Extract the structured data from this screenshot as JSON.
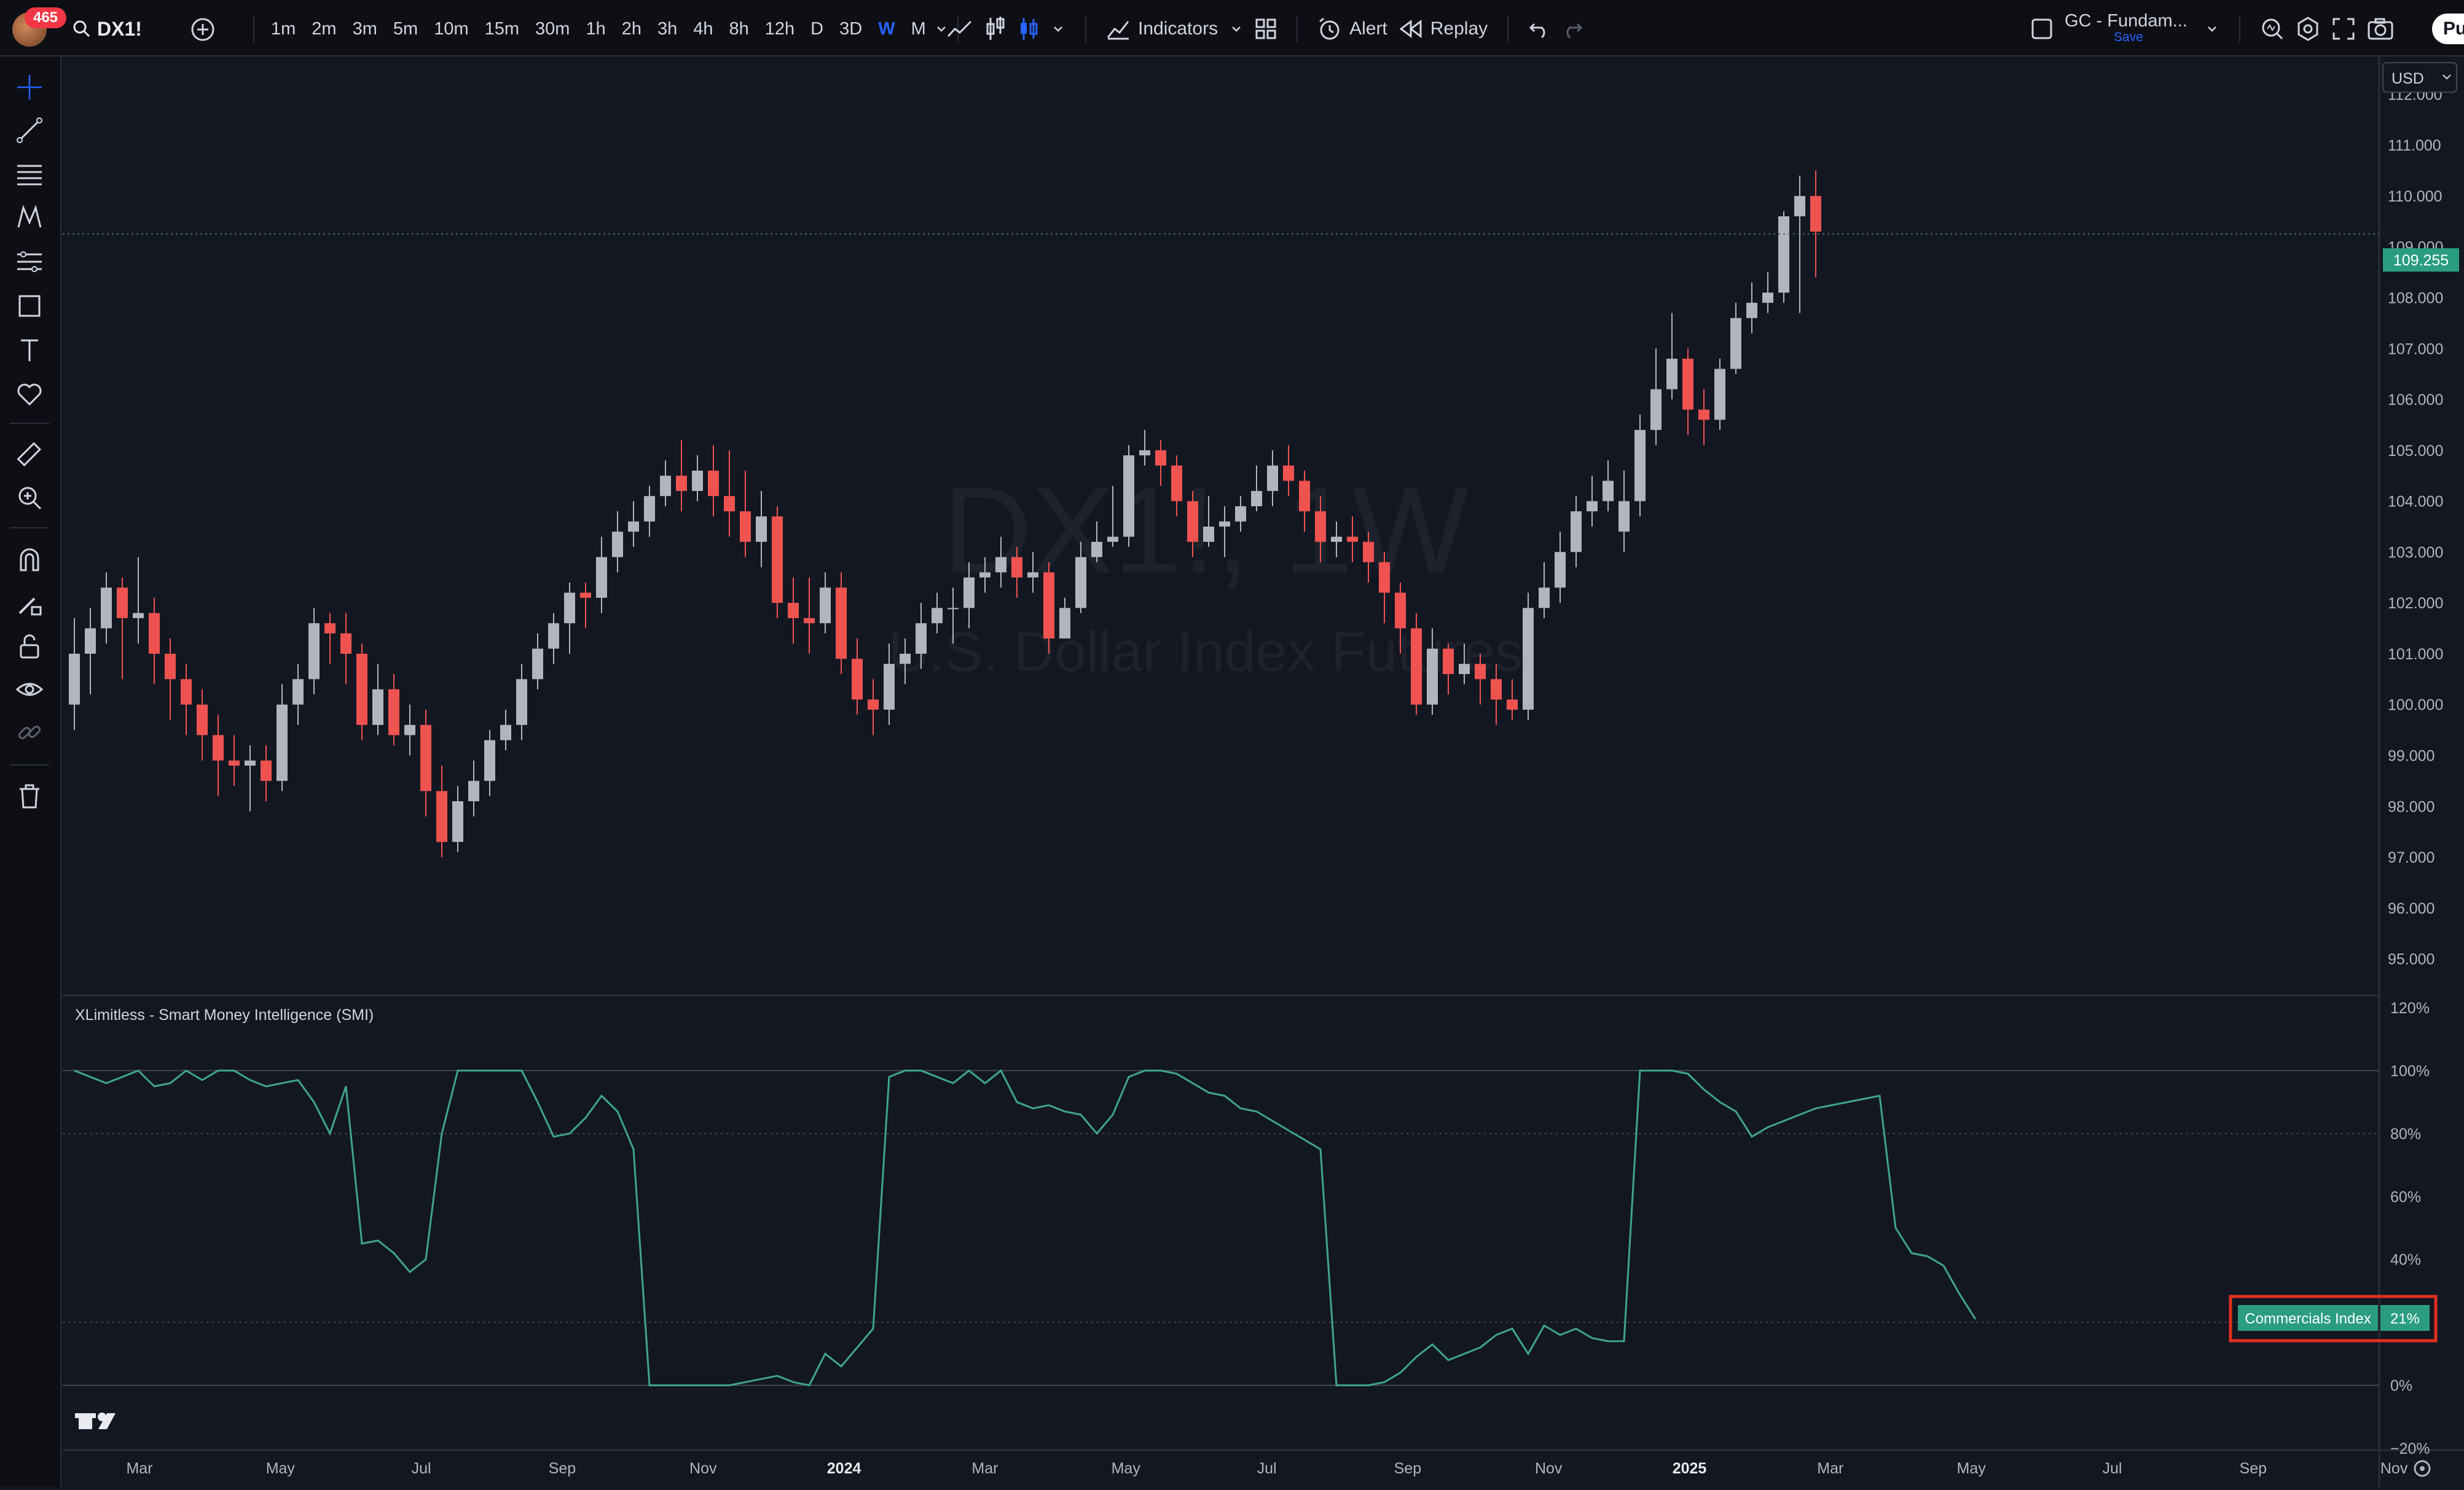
{
  "topbar": {
    "notifications": "465",
    "symbol": "DX1!",
    "intervals": [
      "1m",
      "2m",
      "3m",
      "5m",
      "10m",
      "15m",
      "30m",
      "1h",
      "2h",
      "3h",
      "4h",
      "8h",
      "12h",
      "D",
      "3D",
      "W",
      "M"
    ],
    "active_interval": "W",
    "indicators_label": "Indicators",
    "alert_label": "Alert",
    "replay_label": "Replay",
    "layout_name": "GC - Fundam...",
    "layout_save": "Save",
    "publish_label": "Pu"
  },
  "watermark": {
    "title": "DX1!, 1W",
    "subtitle": "U.S. Dollar Index Futures"
  },
  "price_axis": {
    "currency": "USD",
    "labels": [
      "112.000",
      "111.000",
      "110.000",
      "109.000",
      "108.000",
      "107.000",
      "106.000",
      "105.000",
      "104.000",
      "103.000",
      "102.000",
      "101.000",
      "100.000",
      "99.000",
      "98.000",
      "97.000",
      "96.000",
      "95.000"
    ],
    "last_price": "109.255"
  },
  "indicator": {
    "title": "XLimitless - Smart Money Intelligence (SMI)",
    "axis_labels": [
      "120%",
      "100%",
      "80%",
      "60%",
      "40%",
      "20%",
      "0%",
      "−20%"
    ],
    "badge_label": "Commercials Index",
    "badge_value": "21%"
  },
  "time_axis": {
    "labels": [
      "Mar",
      "May",
      "Jul",
      "Sep",
      "Nov",
      "2024",
      "Mar",
      "May",
      "Jul",
      "Sep",
      "Nov",
      "2025",
      "Mar",
      "May",
      "Jul",
      "Sep",
      "Nov"
    ],
    "bold": [
      "2024",
      "2025"
    ]
  },
  "colors": {
    "up": "#b2b5be",
    "down": "#ef5350",
    "line": "#3fa58e",
    "accent": "#2962ff",
    "badge": "#2a9d80"
  },
  "chart_data": [
    {
      "type": "candlestick",
      "title": "DX1!, 1W",
      "subtitle": "U.S. Dollar Index Futures",
      "ylim": [
        94.5,
        112.5
      ],
      "candles": [
        [
          100.0,
          101.0,
          101.7,
          99.5
        ],
        [
          101.0,
          101.5,
          101.9,
          100.2
        ],
        [
          101.5,
          102.3,
          102.6,
          101.2
        ],
        [
          102.3,
          101.7,
          102.5,
          100.5
        ],
        [
          101.7,
          101.8,
          102.9,
          101.2
        ],
        [
          101.8,
          101.0,
          102.1,
          100.4
        ],
        [
          101.0,
          100.5,
          101.3,
          99.7
        ],
        [
          100.5,
          100.0,
          100.8,
          99.4
        ],
        [
          100.0,
          99.4,
          100.3,
          98.9
        ],
        [
          99.4,
          98.9,
          99.8,
          98.2
        ],
        [
          98.9,
          98.8,
          99.4,
          98.4
        ],
        [
          98.8,
          98.9,
          99.2,
          97.9
        ],
        [
          98.9,
          98.5,
          99.2,
          98.1
        ],
        [
          98.5,
          100.0,
          100.4,
          98.3
        ],
        [
          100.0,
          100.5,
          100.8,
          99.6
        ],
        [
          100.5,
          101.6,
          101.9,
          100.2
        ],
        [
          101.6,
          101.4,
          101.8,
          100.8
        ],
        [
          101.4,
          101.0,
          101.8,
          100.4
        ],
        [
          101.0,
          99.6,
          101.2,
          99.3
        ],
        [
          99.6,
          100.3,
          100.8,
          99.4
        ],
        [
          100.3,
          99.4,
          100.6,
          99.2
        ],
        [
          99.4,
          99.6,
          100.0,
          99.0
        ],
        [
          99.6,
          98.3,
          99.9,
          97.8
        ],
        [
          98.3,
          97.3,
          98.8,
          97.0
        ],
        [
          97.3,
          98.1,
          98.4,
          97.1
        ],
        [
          98.1,
          98.5,
          98.9,
          97.8
        ],
        [
          98.5,
          99.3,
          99.5,
          98.2
        ],
        [
          99.3,
          99.6,
          99.9,
          99.1
        ],
        [
          99.6,
          100.5,
          100.8,
          99.3
        ],
        [
          100.5,
          101.1,
          101.4,
          100.3
        ],
        [
          101.1,
          101.6,
          101.8,
          100.8
        ],
        [
          101.6,
          102.2,
          102.4,
          101.0
        ],
        [
          102.2,
          102.1,
          102.4,
          101.5
        ],
        [
          102.1,
          102.9,
          103.3,
          101.8
        ],
        [
          102.9,
          103.4,
          103.8,
          102.6
        ],
        [
          103.4,
          103.6,
          104.0,
          103.1
        ],
        [
          103.6,
          104.1,
          104.3,
          103.3
        ],
        [
          104.1,
          104.5,
          104.8,
          103.9
        ],
        [
          104.5,
          104.2,
          105.2,
          103.8
        ],
        [
          104.2,
          104.6,
          104.9,
          104.0
        ],
        [
          104.6,
          104.1,
          105.1,
          103.7
        ],
        [
          104.1,
          103.8,
          105.0,
          103.3
        ],
        [
          103.8,
          103.2,
          104.6,
          102.9
        ],
        [
          103.2,
          103.7,
          104.2,
          102.7
        ],
        [
          103.7,
          102.0,
          103.9,
          101.7
        ],
        [
          102.0,
          101.7,
          102.5,
          101.2
        ],
        [
          101.7,
          101.6,
          102.5,
          101.0
        ],
        [
          101.6,
          102.3,
          102.6,
          101.4
        ],
        [
          102.3,
          100.9,
          102.6,
          100.6
        ],
        [
          100.9,
          100.1,
          101.3,
          99.8
        ],
        [
          100.1,
          99.9,
          100.5,
          99.4
        ],
        [
          99.9,
          100.8,
          101.2,
          99.6
        ],
        [
          100.8,
          101.0,
          101.3,
          100.4
        ],
        [
          101.0,
          101.6,
          102.0,
          100.7
        ],
        [
          101.6,
          101.9,
          102.2,
          101.4
        ],
        [
          101.9,
          101.9,
          102.3,
          101.2
        ],
        [
          101.9,
          102.5,
          102.8,
          101.5
        ],
        [
          102.5,
          102.6,
          102.9,
          102.2
        ],
        [
          102.6,
          102.9,
          103.3,
          102.3
        ],
        [
          102.9,
          102.5,
          103.1,
          102.1
        ],
        [
          102.5,
          102.6,
          103.0,
          102.2
        ],
        [
          102.6,
          101.3,
          102.8,
          101.0
        ],
        [
          101.3,
          101.9,
          102.1,
          101.5
        ],
        [
          101.9,
          102.9,
          103.2,
          101.8
        ],
        [
          102.9,
          103.2,
          103.6,
          102.8
        ],
        [
          103.2,
          103.3,
          104.3,
          103.1
        ],
        [
          103.3,
          104.9,
          105.1,
          103.1
        ],
        [
          104.9,
          105.0,
          105.4,
          104.7
        ],
        [
          105.0,
          104.7,
          105.2,
          104.3
        ],
        [
          104.7,
          104.0,
          104.9,
          103.7
        ],
        [
          104.0,
          103.2,
          104.2,
          102.9
        ],
        [
          103.2,
          103.5,
          104.1,
          103.1
        ],
        [
          103.5,
          103.6,
          103.9,
          102.9
        ],
        [
          103.6,
          103.9,
          104.1,
          103.4
        ],
        [
          103.9,
          104.2,
          104.7,
          103.8
        ],
        [
          104.2,
          104.7,
          105.0,
          103.9
        ],
        [
          104.7,
          104.4,
          105.1,
          104.1
        ],
        [
          104.4,
          103.8,
          104.6,
          103.4
        ],
        [
          103.8,
          103.2,
          104.1,
          102.8
        ],
        [
          103.2,
          103.3,
          103.6,
          102.9
        ],
        [
          103.3,
          103.2,
          103.7,
          102.8
        ],
        [
          103.2,
          102.8,
          103.4,
          102.4
        ],
        [
          102.8,
          102.2,
          103.0,
          101.6
        ],
        [
          102.2,
          101.5,
          102.4,
          101.0
        ],
        [
          101.5,
          100.0,
          101.8,
          99.8
        ],
        [
          100.0,
          101.1,
          101.5,
          99.8
        ],
        [
          101.1,
          100.6,
          101.2,
          100.2
        ],
        [
          100.6,
          100.8,
          101.2,
          100.4
        ],
        [
          100.8,
          100.5,
          101.0,
          100.0
        ],
        [
          100.5,
          100.1,
          100.8,
          99.6
        ],
        [
          100.1,
          99.9,
          100.5,
          99.7
        ],
        [
          99.9,
          101.9,
          102.2,
          99.7
        ],
        [
          101.9,
          102.3,
          102.8,
          101.7
        ],
        [
          102.3,
          103.0,
          103.4,
          102.0
        ],
        [
          103.0,
          103.8,
          104.1,
          102.7
        ],
        [
          103.8,
          104.0,
          104.5,
          103.5
        ],
        [
          104.0,
          104.4,
          104.8,
          103.8
        ],
        [
          103.4,
          104.0,
          104.6,
          103.0
        ],
        [
          104.0,
          105.4,
          105.7,
          103.7
        ],
        [
          105.4,
          106.2,
          107.0,
          105.1
        ],
        [
          106.2,
          106.8,
          107.7,
          106.0
        ],
        [
          106.8,
          105.8,
          107.0,
          105.3
        ],
        [
          105.8,
          105.6,
          106.2,
          105.1
        ],
        [
          105.6,
          106.6,
          106.8,
          105.4
        ],
        [
          106.6,
          107.6,
          107.9,
          106.5
        ],
        [
          107.6,
          107.9,
          108.3,
          107.3
        ],
        [
          107.9,
          108.1,
          108.5,
          107.7
        ],
        [
          108.1,
          109.6,
          109.7,
          107.9
        ],
        [
          109.6,
          110.0,
          110.4,
          107.7
        ],
        [
          110.0,
          109.3,
          110.5,
          108.4
        ]
      ]
    },
    {
      "type": "line",
      "title": "XLimitless - Smart Money Intelligence (SMI)",
      "ylim": [
        -20,
        120
      ],
      "series": [
        {
          "name": "Commercials Index",
          "values": [
            100,
            98,
            96,
            98,
            100,
            95,
            96,
            100,
            97,
            100,
            100,
            97,
            95,
            96,
            97,
            90,
            80,
            95,
            45,
            46,
            42,
            36,
            40,
            80,
            100,
            100,
            100,
            100,
            100,
            90,
            79,
            80,
            85,
            92,
            87,
            75,
            0,
            0,
            0,
            0,
            0,
            0,
            1,
            2,
            3,
            1,
            0,
            10,
            6,
            12,
            18,
            98,
            100,
            100,
            98,
            96,
            100,
            96,
            100,
            90,
            88,
            89,
            87,
            86,
            80,
            86,
            98,
            100,
            100,
            99,
            96,
            93,
            92,
            88,
            87,
            84,
            81,
            78,
            75,
            0,
            0,
            0,
            1,
            4,
            9,
            13,
            8,
            10,
            12,
            16,
            18,
            10,
            19,
            16,
            18,
            15,
            14,
            14,
            100,
            100,
            100,
            99,
            94,
            90,
            87,
            79,
            82,
            84,
            86,
            88,
            89,
            90,
            91,
            92,
            50,
            42,
            41,
            38,
            29,
            21
          ]
        }
      ]
    }
  ]
}
